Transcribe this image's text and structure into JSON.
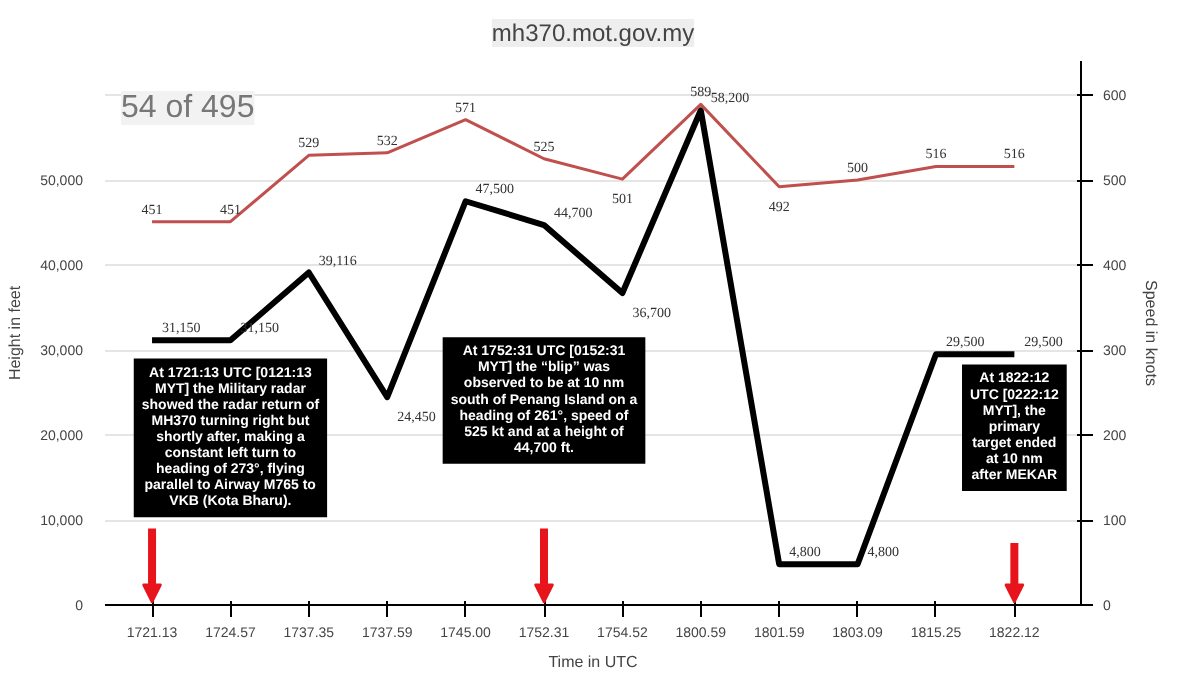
{
  "chart_data": {
    "type": "line",
    "categories": [
      "1721.13",
      "1724.57",
      "1737.35",
      "1737.59",
      "1745.00",
      "1752.31",
      "1754.52",
      "1800.59",
      "1801.59",
      "1803.09",
      "1815.25",
      "1822.12"
    ],
    "series": [
      {
        "color": "#000000",
        "values": [
          31150,
          31150,
          39116,
          24450,
          47500,
          44700,
          36700,
          58200,
          4800,
          4800,
          29500,
          29500
        ],
        "value_labels": [
          "31,150",
          "31,150",
          "39,116",
          "24,450",
          "47,500",
          "44,700",
          "36,700",
          "58,200",
          "4,800",
          "4,800",
          "29,500",
          "29,500"
        ]
      },
      {
        "color": "#c0504d",
        "axis": "y2",
        "values": [
          451,
          451,
          529,
          532,
          571,
          525,
          501,
          589,
          492,
          500,
          516,
          516
        ],
        "value_labels": [
          "451",
          "451",
          "529",
          "532",
          "571",
          "525",
          "501",
          "589",
          "492",
          "500",
          "516",
          "516"
        ]
      }
    ],
    "xlabel": "Time in UTC",
    "ylabel": "Height in feet",
    "y2label": "Speed in knots",
    "ylim": [
      0,
      64000
    ],
    "yticks": [
      0,
      {
        "value": 10000,
        "label": "10,000"
      },
      {
        "value": 20000,
        "label": "20,000"
      },
      {
        "value": 30000,
        "label": "30,000"
      },
      {
        "value": 40000,
        "label": "40,000"
      },
      {
        "value": 50000,
        "label": "50,000"
      },
      {
        "value": 60000,
        "label": null
      }
    ],
    "y2lim": [
      0,
      640
    ],
    "y2ticks": [
      0,
      100,
      200,
      300,
      400,
      500,
      600
    ],
    "grid": "y",
    "marker": "none",
    "line_style": "solid",
    "annotations": [
      "mh370.mot.gov.my",
      "54 of 495",
      "At 1721:13 UTC [0121:13 MYT] the Military radar showed the radar return of MH370 turning right but shortly after, making a constant left turn to heading of 273°, flying parallel to Airway M765 to VKB (Kota Bharu).",
      "At 1752:31 UTC [0152:31 MYT] the “blip” was observed to be at 10 nm south of Penang Island on a heading of 261°, speed of 525 kt and at a height of 44,700 ft.",
      "At 1822:12 UTC [0222:12 MYT], the primary target ended at 10 nm after MEKAR"
    ]
  }
}
